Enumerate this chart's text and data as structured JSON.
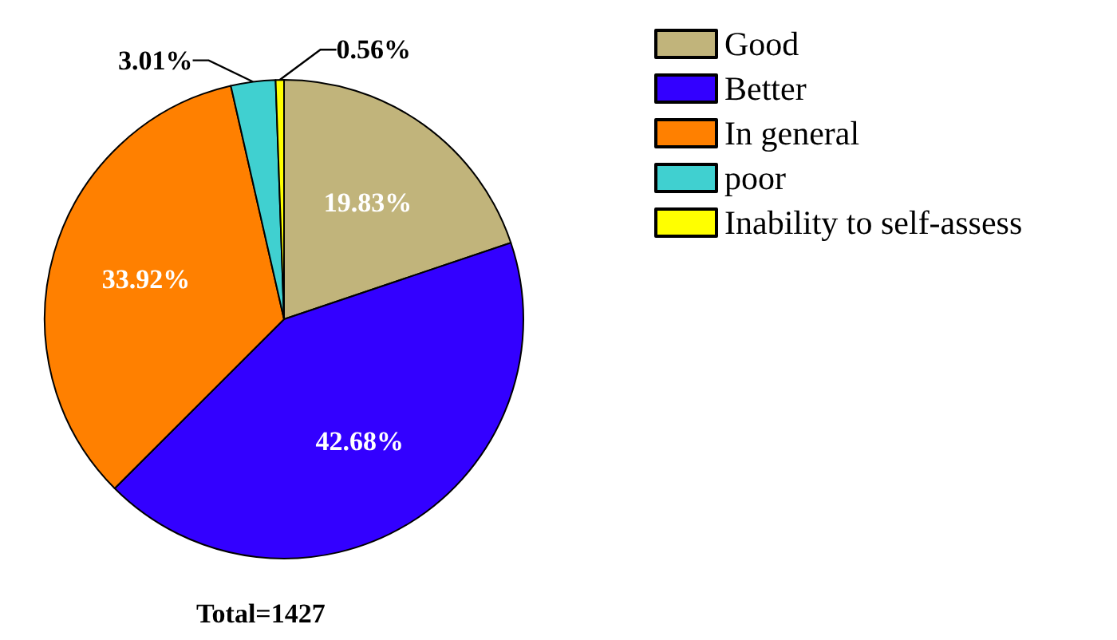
{
  "chart_data": {
    "type": "pie",
    "categories": [
      "Good",
      "Better",
      "In general",
      "poor",
      "Inability to self-assess"
    ],
    "values": [
      19.83,
      42.68,
      33.92,
      3.01,
      0.56
    ],
    "colors": [
      "#c1b47b",
      "#3300ff",
      "#ff8000",
      "#40d0d0",
      "#ffff00"
    ],
    "value_labels": [
      "19.83%",
      "42.68%",
      "33.92%",
      "3.01%",
      "0.56%"
    ],
    "legend": "top right",
    "annotations": [
      "Total=1427"
    ]
  }
}
